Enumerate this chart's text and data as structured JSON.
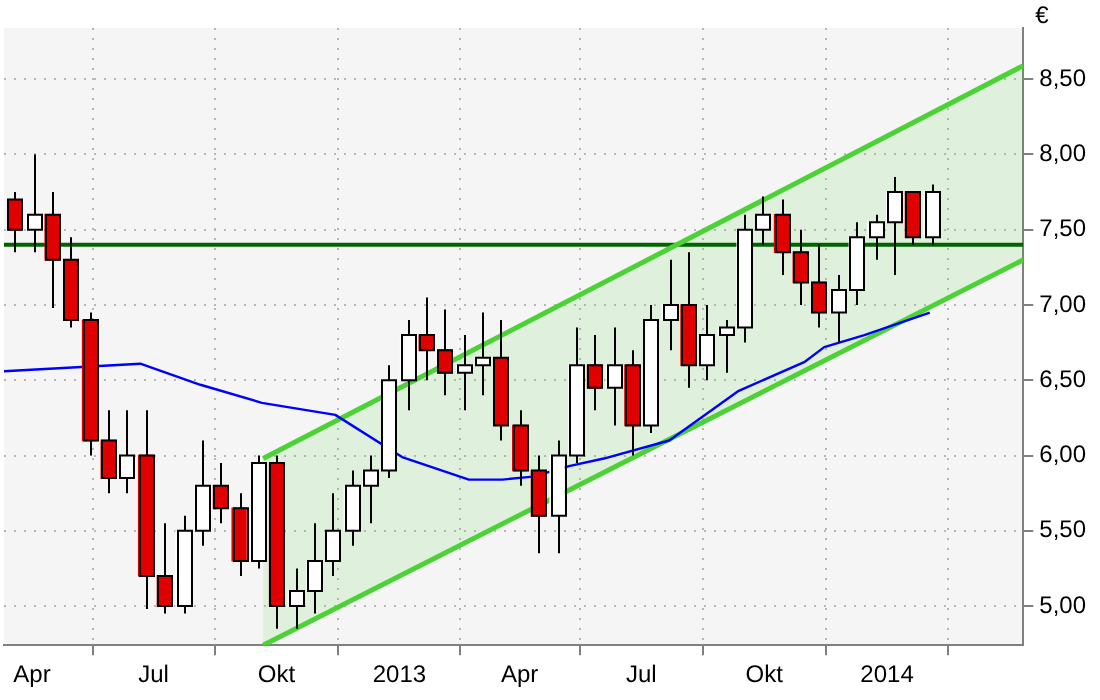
{
  "chart_data": {
    "type": "candlestick",
    "ylabel": "€",
    "legend": false,
    "grid": true,
    "xlim": [
      "2012-03-11",
      "2014-04-13"
    ],
    "ylim": [
      4.74,
      8.84
    ],
    "xticks": [
      {
        "value": "2012-04-01",
        "label": "Apr"
      },
      {
        "value": "2012-07-01",
        "label": "Jul"
      },
      {
        "value": "2012-10-01",
        "label": "Okt"
      },
      {
        "value": "2013-01-01",
        "label": "2013"
      },
      {
        "value": "2013-04-01",
        "label": "Apr"
      },
      {
        "value": "2013-07-01",
        "label": "Jul"
      },
      {
        "value": "2013-10-01",
        "label": "Okt"
      },
      {
        "value": "2014-01-01",
        "label": "2014"
      }
    ],
    "yticks": [
      {
        "value": 5,
        "label": "5,00"
      },
      {
        "value": 5.5,
        "label": "5,50"
      },
      {
        "value": 6,
        "label": "6,00"
      },
      {
        "value": 6.5,
        "label": "6,50"
      },
      {
        "value": 7,
        "label": "7,00"
      },
      {
        "value": 7.5,
        "label": "7,50"
      },
      {
        "value": 8,
        "label": "8,00"
      },
      {
        "value": 8.5,
        "label": "8,50"
      }
    ],
    "ref_lines": [
      {
        "axis": "y",
        "value": 7.4,
        "color": "#006400"
      }
    ],
    "series": [
      {
        "type": "line",
        "color": "#4cd137",
        "x": [
          "2012-09-21",
          "2014-04-13"
        ],
        "values": [
          5.98,
          8.59
        ],
        "lower": [
          4.74,
          7.3
        ],
        "upper": [
          5.98,
          8.59
        ]
      },
      {
        "type": "line",
        "color": "#4cd137",
        "x": [
          "2012-09-21",
          "2014-04-13"
        ],
        "values": [
          4.74,
          7.3
        ]
      },
      {
        "type": "line",
        "color": "#0000ff",
        "x": [
          "2012-03-11",
          "2012-06-21",
          "2012-08-05",
          "2012-09-20",
          "2012-11-14",
          "2013-01-03",
          "2013-02-22",
          "2013-03-19",
          "2013-04-11",
          "2013-05-08",
          "2013-06-03",
          "2013-07-22",
          "2013-09-12",
          "2013-10-31",
          "2013-11-15",
          "2013-12-15",
          "2014-02-02"
        ],
        "values": [
          6.56,
          6.61,
          6.47,
          6.35,
          6.27,
          5.99,
          5.84,
          5.84,
          5.86,
          5.93,
          5.98,
          6.1,
          6.43,
          6.62,
          6.72,
          6.8,
          6.95
        ]
      },
      {
        "x": [
          "2012-03-19",
          "2012-04-02",
          "2012-04-16",
          "2012-04-30",
          "2012-05-14",
          "2012-05-28",
          "2012-06-11",
          "2012-06-25",
          "2012-07-09",
          "2012-07-23",
          "2012-08-06",
          "2012-08-20",
          "2012-09-03",
          "2012-09-17",
          "2012-10-01",
          "2012-10-15",
          "2012-10-29",
          "2012-11-12",
          "2012-11-26",
          "2012-12-10",
          "2012-12-24",
          "2013-01-07",
          "2013-01-21",
          "2013-02-04",
          "2013-02-18",
          "2013-03-04",
          "2013-03-18",
          "2013-04-01",
          "2013-04-15",
          "2013-04-29",
          "2013-05-13",
          "2013-05-27",
          "2013-06-10",
          "2013-06-24",
          "2013-07-08",
          "2013-07-22",
          "2013-08-05",
          "2013-08-19",
          "2013-09-02",
          "2013-09-16",
          "2013-09-30",
          "2013-10-14",
          "2013-10-28",
          "2013-11-11",
          "2013-11-25",
          "2013-12-09",
          "2013-12-23",
          "2014-01-06",
          "2014-01-20",
          "2014-02-03"
        ],
        "ohlc": [
          [
            7.7,
            7.75,
            7.35,
            7.5
          ],
          [
            7.5,
            8.0,
            7.35,
            7.6
          ],
          [
            7.6,
            7.75,
            6.98,
            7.3
          ],
          [
            7.3,
            7.45,
            6.85,
            6.9
          ],
          [
            6.9,
            6.95,
            6.0,
            6.1
          ],
          [
            6.1,
            6.3,
            5.75,
            5.85
          ],
          [
            5.85,
            6.3,
            5.75,
            6.0
          ],
          [
            6.0,
            6.3,
            4.98,
            5.2
          ],
          [
            5.2,
            5.55,
            4.95,
            5.0
          ],
          [
            5.0,
            5.6,
            4.95,
            5.5
          ],
          [
            5.5,
            6.1,
            5.4,
            5.8
          ],
          [
            5.8,
            5.95,
            5.55,
            5.65
          ],
          [
            5.65,
            5.75,
            5.2,
            5.3
          ],
          [
            5.3,
            6.0,
            5.25,
            5.95
          ],
          [
            5.95,
            6.0,
            4.85,
            5.0
          ],
          [
            5.0,
            5.25,
            4.85,
            5.1
          ],
          [
            5.1,
            5.55,
            4.95,
            5.3
          ],
          [
            5.3,
            5.75,
            5.2,
            5.5
          ],
          [
            5.5,
            5.9,
            5.4,
            5.8
          ],
          [
            5.8,
            6.0,
            5.55,
            5.9
          ],
          [
            5.9,
            6.6,
            5.85,
            6.5
          ],
          [
            6.5,
            6.9,
            6.3,
            6.8
          ],
          [
            6.8,
            7.05,
            6.5,
            6.7
          ],
          [
            6.7,
            6.97,
            6.4,
            6.55
          ],
          [
            6.55,
            6.8,
            6.3,
            6.6
          ],
          [
            6.6,
            6.95,
            6.4,
            6.65
          ],
          [
            6.65,
            6.9,
            6.1,
            6.2
          ],
          [
            6.2,
            6.3,
            5.8,
            5.9
          ],
          [
            5.9,
            6.0,
            5.35,
            5.6
          ],
          [
            5.6,
            6.1,
            5.35,
            6.0
          ],
          [
            6.0,
            6.85,
            5.95,
            6.6
          ],
          [
            6.6,
            6.8,
            6.3,
            6.45
          ],
          [
            6.45,
            6.85,
            6.2,
            6.6
          ],
          [
            6.6,
            6.7,
            6.0,
            6.2
          ],
          [
            6.2,
            7.0,
            6.15,
            6.9
          ],
          [
            6.9,
            7.3,
            6.7,
            7.0
          ],
          [
            7.0,
            7.35,
            6.45,
            6.6
          ],
          [
            6.6,
            7.0,
            6.5,
            6.8
          ],
          [
            6.8,
            6.9,
            6.55,
            6.85
          ],
          [
            6.85,
            7.6,
            6.75,
            7.5
          ],
          [
            7.5,
            7.72,
            7.4,
            7.6
          ],
          [
            7.6,
            7.7,
            7.2,
            7.35
          ],
          [
            7.35,
            7.5,
            7.0,
            7.15
          ],
          [
            7.15,
            7.4,
            6.85,
            6.95
          ],
          [
            6.95,
            7.2,
            6.75,
            7.1
          ],
          [
            7.1,
            7.55,
            7.0,
            7.45
          ],
          [
            7.45,
            7.6,
            7.3,
            7.55
          ],
          [
            7.55,
            7.85,
            7.2,
            7.75
          ],
          [
            7.75,
            7.75,
            7.4,
            7.45
          ],
          [
            7.45,
            7.8,
            7.4,
            7.75
          ]
        ],
        "colors": [
          "#e00000",
          "#ffffff",
          "#e00000",
          "#e00000",
          "#e00000",
          "#e00000",
          "#ffffff",
          "#e00000",
          "#e00000",
          "#ffffff",
          "#ffffff",
          "#e00000",
          "#e00000",
          "#ffffff",
          "#e00000",
          "#ffffff",
          "#ffffff",
          "#ffffff",
          "#ffffff",
          "#ffffff",
          "#ffffff",
          "#ffffff",
          "#e00000",
          "#e00000",
          "#ffffff",
          "#ffffff",
          "#e00000",
          "#e00000",
          "#e00000",
          "#ffffff",
          "#ffffff",
          "#e00000",
          "#ffffff",
          "#e00000",
          "#ffffff",
          "#ffffff",
          "#e00000",
          "#ffffff",
          "#ffffff",
          "#ffffff",
          "#ffffff",
          "#e00000",
          "#e00000",
          "#e00000",
          "#ffffff",
          "#ffffff",
          "#ffffff",
          "#ffffff",
          "#e00000",
          "#ffffff"
        ]
      }
    ]
  }
}
